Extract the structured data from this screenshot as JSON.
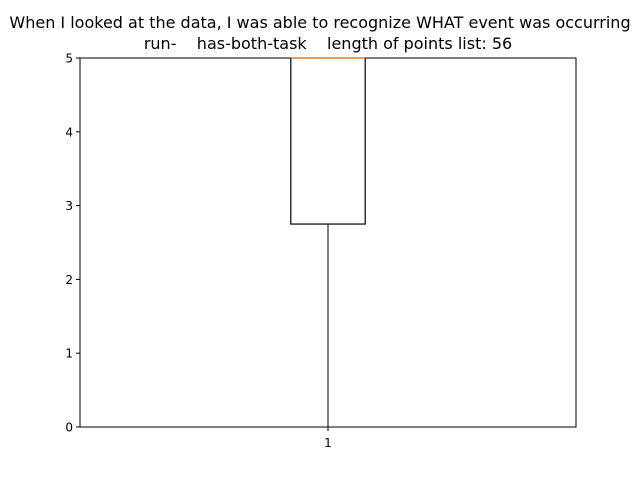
{
  "chart_data": {
    "type": "box",
    "title_line1": "When I looked at the data, I was able to recognize WHAT event was occurring",
    "title_line2": "run-    has-both-task    length of points list: 56",
    "xlabel": "",
    "ylabel": "",
    "categories": [
      "1"
    ],
    "ylim": [
      0,
      5
    ],
    "yticks": [
      0,
      1,
      2,
      3,
      4,
      5
    ],
    "grid": false,
    "box": {
      "whisker_low": 0,
      "q1": 2.75,
      "median": 5,
      "q3": 5,
      "whisker_high": 5
    },
    "colors": {
      "box": "#000000",
      "median": "#ff7f0e",
      "axes": "#000000",
      "background": "#ffffff"
    }
  }
}
